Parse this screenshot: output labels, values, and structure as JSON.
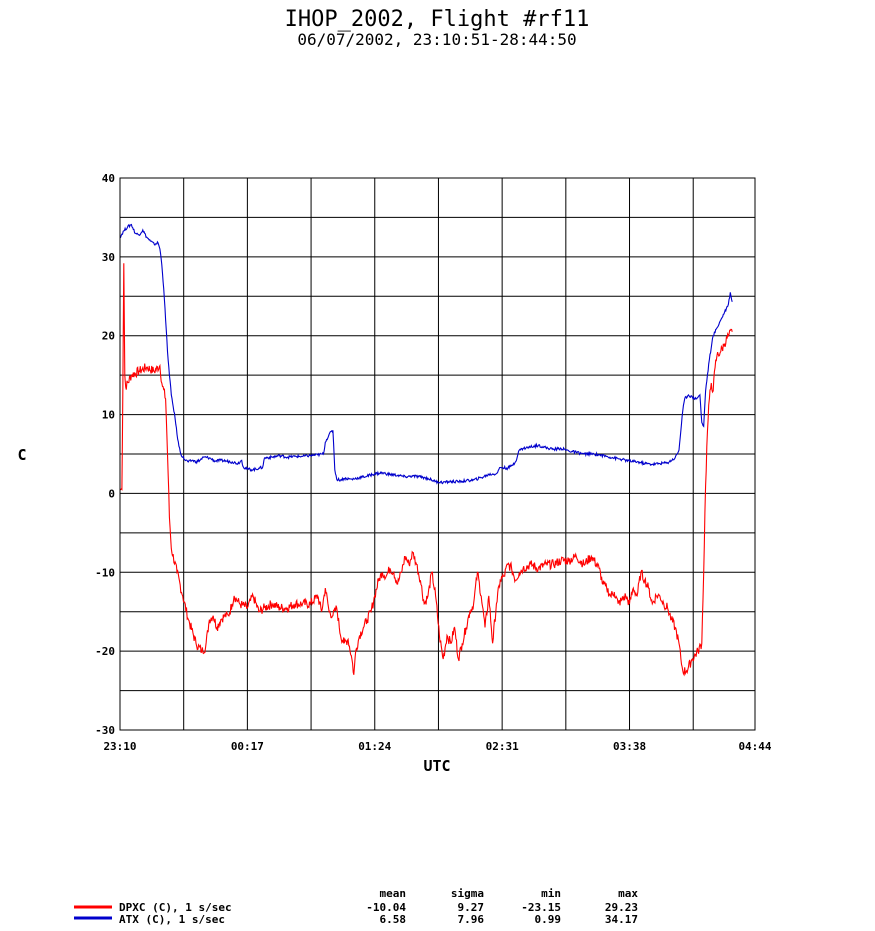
{
  "chart_data": {
    "type": "line",
    "title": "IHOP_2002, Flight #rf11",
    "subtitle": "06/07/2002, 23:10:51-28:44:50",
    "xlabel": "UTC",
    "ylabel": "C",
    "xlim_minutes": [
      0,
      334
    ],
    "ylim": [
      -30,
      40
    ],
    "x_ticks": [
      {
        "minute": 0,
        "label": "23:10"
      },
      {
        "minute": 67,
        "label": "00:17"
      },
      {
        "minute": 134,
        "label": "01:24"
      },
      {
        "minute": 201,
        "label": "02:31"
      },
      {
        "minute": 268,
        "label": "03:38"
      },
      {
        "minute": 334,
        "label": "04:44"
      }
    ],
    "y_ticks": [
      {
        "value": 40,
        "label": "40"
      },
      {
        "value": 30,
        "label": "30"
      },
      {
        "value": 20,
        "label": "20"
      },
      {
        "value": 10,
        "label": "10"
      },
      {
        "value": 0,
        "label": "0"
      },
      {
        "value": -10,
        "label": "-10"
      },
      {
        "value": -20,
        "label": "-20"
      },
      {
        "value": -30,
        "label": "-30"
      }
    ],
    "grid": true,
    "stats_headers": {
      "mean": "mean",
      "sigma": "sigma",
      "min": "min",
      "max": "max"
    },
    "series": [
      {
        "name": "DPXC (C), 1 s/sec",
        "color": "#ff0000",
        "mean": "-10.04",
        "sigma": "9.27",
        "min": "-23.15",
        "max": "29.23",
        "points": [
          [
            0,
            0.5
          ],
          [
            1,
            0.5
          ],
          [
            1.5,
            14
          ],
          [
            2,
            29.2
          ],
          [
            2.5,
            15
          ],
          [
            3,
            13.5
          ],
          [
            6,
            15
          ],
          [
            10,
            15.5
          ],
          [
            14,
            16
          ],
          [
            18,
            15.5
          ],
          [
            21,
            16.2
          ],
          [
            22,
            14
          ],
          [
            24,
            12
          ],
          [
            25,
            5
          ],
          [
            26,
            -3
          ],
          [
            27,
            -7
          ],
          [
            30,
            -10
          ],
          [
            33,
            -13
          ],
          [
            36,
            -16
          ],
          [
            40,
            -19
          ],
          [
            43,
            -20
          ],
          [
            45,
            -19.5
          ],
          [
            47,
            -16
          ],
          [
            49,
            -15.5
          ],
          [
            51,
            -17
          ],
          [
            53,
            -16
          ],
          [
            55,
            -15.5
          ],
          [
            57,
            -15.5
          ],
          [
            59,
            -14
          ],
          [
            60,
            -13
          ],
          [
            63,
            -14
          ],
          [
            67,
            -14.5
          ],
          [
            70,
            -13
          ],
          [
            73,
            -15
          ],
          [
            76,
            -14.5
          ],
          [
            80,
            -14
          ],
          [
            84,
            -14.5
          ],
          [
            88,
            -14.5
          ],
          [
            92,
            -14
          ],
          [
            96,
            -14
          ],
          [
            100,
            -14
          ],
          [
            104,
            -13
          ],
          [
            106,
            -15
          ],
          [
            108,
            -12
          ],
          [
            110,
            -15
          ],
          [
            112,
            -15.5
          ],
          [
            114,
            -14.5
          ],
          [
            116,
            -18
          ],
          [
            118,
            -19
          ],
          [
            120,
            -18.5
          ],
          [
            122,
            -21
          ],
          [
            123,
            -23
          ],
          [
            124,
            -20
          ],
          [
            126,
            -18
          ],
          [
            128,
            -17
          ],
          [
            130,
            -16
          ],
          [
            132,
            -15
          ],
          [
            134,
            -13
          ],
          [
            136,
            -11
          ],
          [
            138,
            -10
          ],
          [
            140,
            -10.5
          ],
          [
            142,
            -9.5
          ],
          [
            144,
            -10
          ],
          [
            146,
            -11.5
          ],
          [
            148,
            -10
          ],
          [
            150,
            -8
          ],
          [
            152,
            -9
          ],
          [
            154,
            -7.5
          ],
          [
            156,
            -9
          ],
          [
            158,
            -11
          ],
          [
            160,
            -14
          ],
          [
            162,
            -13
          ],
          [
            164,
            -10
          ],
          [
            166,
            -13
          ],
          [
            168,
            -18
          ],
          [
            170,
            -21
          ],
          [
            172,
            -18
          ],
          [
            174,
            -19
          ],
          [
            176,
            -17
          ],
          [
            178,
            -21
          ],
          [
            180,
            -19
          ],
          [
            182,
            -17
          ],
          [
            184,
            -15
          ],
          [
            186,
            -14
          ],
          [
            188,
            -10
          ],
          [
            190,
            -13
          ],
          [
            192,
            -17
          ],
          [
            194,
            -13
          ],
          [
            196,
            -19
          ],
          [
            198,
            -14
          ],
          [
            200,
            -11
          ],
          [
            202,
            -10.5
          ],
          [
            204,
            -9
          ],
          [
            206,
            -9.5
          ],
          [
            208,
            -11
          ],
          [
            210,
            -10
          ],
          [
            212,
            -9.5
          ],
          [
            216,
            -9
          ],
          [
            220,
            -9.5
          ],
          [
            224,
            -9
          ],
          [
            228,
            -9
          ],
          [
            232,
            -8.5
          ],
          [
            236,
            -8.5
          ],
          [
            240,
            -8
          ],
          [
            244,
            -9
          ],
          [
            248,
            -8
          ],
          [
            252,
            -9.5
          ],
          [
            254,
            -11.5
          ],
          [
            256,
            -12
          ],
          [
            258,
            -13
          ],
          [
            260,
            -12.5
          ],
          [
            262,
            -14
          ],
          [
            264,
            -13.5
          ],
          [
            266,
            -13
          ],
          [
            268,
            -14
          ],
          [
            270,
            -12
          ],
          [
            272,
            -13
          ],
          [
            274,
            -10
          ],
          [
            276,
            -11
          ],
          [
            278,
            -12
          ],
          [
            280,
            -14
          ],
          [
            282,
            -13
          ],
          [
            284,
            -13
          ],
          [
            286,
            -14
          ],
          [
            288,
            -14.5
          ],
          [
            290,
            -16
          ],
          [
            292,
            -17
          ],
          [
            294,
            -19
          ],
          [
            295,
            -21
          ],
          [
            296,
            -22.5
          ],
          [
            298,
            -22.5
          ],
          [
            301,
            -21
          ],
          [
            304,
            -20
          ],
          [
            306,
            -19
          ],
          [
            307,
            -10
          ],
          [
            308,
            1
          ],
          [
            309,
            8
          ],
          [
            310,
            12
          ],
          [
            311,
            14
          ],
          [
            312,
            13
          ],
          [
            313,
            16
          ],
          [
            314,
            17.5
          ],
          [
            316,
            18
          ],
          [
            318,
            19
          ],
          [
            320,
            20
          ],
          [
            322,
            20.5
          ]
        ]
      },
      {
        "name": "ATX (C), 1 s/sec",
        "color": "#0000cc",
        "mean": "6.58",
        "sigma": "7.96",
        "min": "0.99",
        "max": "34.17",
        "points": [
          [
            0,
            32.5
          ],
          [
            2,
            33.3
          ],
          [
            4,
            33.8
          ],
          [
            6,
            34.1
          ],
          [
            8,
            33
          ],
          [
            10,
            32.8
          ],
          [
            12,
            33.4
          ],
          [
            14,
            32.5
          ],
          [
            16,
            32
          ],
          [
            18,
            31.6
          ],
          [
            20,
            31.8
          ],
          [
            21,
            31
          ],
          [
            22,
            29
          ],
          [
            23,
            26
          ],
          [
            24,
            22
          ],
          [
            25,
            18
          ],
          [
            26,
            15
          ],
          [
            27,
            12.5
          ],
          [
            28,
            11
          ],
          [
            29,
            9.5
          ],
          [
            30,
            7.5
          ],
          [
            31,
            6
          ],
          [
            32,
            5
          ],
          [
            34,
            4.3
          ],
          [
            36,
            4
          ],
          [
            38,
            4.2
          ],
          [
            40,
            4
          ],
          [
            42,
            4.2
          ],
          [
            44,
            4.6
          ],
          [
            47,
            4.5
          ],
          [
            50,
            4.1
          ],
          [
            53,
            4.2
          ],
          [
            56,
            4.1
          ],
          [
            59,
            4
          ],
          [
            62,
            3.8
          ],
          [
            64,
            4.2
          ],
          [
            65,
            3.3
          ],
          [
            67,
            3.1
          ],
          [
            70,
            3
          ],
          [
            73,
            3.2
          ],
          [
            75,
            3.3
          ],
          [
            76,
            4.5
          ],
          [
            80,
            4.6
          ],
          [
            84,
            4.8
          ],
          [
            88,
            4.6
          ],
          [
            92,
            4.7
          ],
          [
            96,
            4.7
          ],
          [
            100,
            4.8
          ],
          [
            104,
            4.9
          ],
          [
            107,
            5
          ],
          [
            108,
            6.5
          ],
          [
            110,
            7.5
          ],
          [
            112,
            8
          ],
          [
            113,
            3
          ],
          [
            114,
            1.8
          ],
          [
            116,
            1.7
          ],
          [
            118,
            1.9
          ],
          [
            122,
            1.8
          ],
          [
            126,
            2
          ],
          [
            130,
            2.2
          ],
          [
            134,
            2.5
          ],
          [
            138,
            2.6
          ],
          [
            142,
            2.4
          ],
          [
            146,
            2.3
          ],
          [
            150,
            2.1
          ],
          [
            154,
            2.2
          ],
          [
            158,
            2.1
          ],
          [
            162,
            1.9
          ],
          [
            166,
            1.5
          ],
          [
            170,
            1.4
          ],
          [
            174,
            1.5
          ],
          [
            178,
            1.5
          ],
          [
            182,
            1.6
          ],
          [
            186,
            1.7
          ],
          [
            190,
            2
          ],
          [
            194,
            2.4
          ],
          [
            198,
            2.5
          ],
          [
            200,
            3.3
          ],
          [
            204,
            3.2
          ],
          [
            206,
            3.5
          ],
          [
            208,
            4
          ],
          [
            210,
            5.5
          ],
          [
            212,
            5.7
          ],
          [
            216,
            5.9
          ],
          [
            220,
            6.1
          ],
          [
            224,
            5.8
          ],
          [
            228,
            5.6
          ],
          [
            232,
            5.7
          ],
          [
            236,
            5.4
          ],
          [
            240,
            5.2
          ],
          [
            244,
            5
          ],
          [
            248,
            5
          ],
          [
            252,
            4.9
          ],
          [
            256,
            4.7
          ],
          [
            260,
            4.5
          ],
          [
            264,
            4.3
          ],
          [
            268,
            4.1
          ],
          [
            272,
            4
          ],
          [
            276,
            3.8
          ],
          [
            280,
            3.7
          ],
          [
            284,
            3.8
          ],
          [
            288,
            3.9
          ],
          [
            292,
            4.5
          ],
          [
            294,
            5.5
          ],
          [
            295,
            8
          ],
          [
            296,
            10.5
          ],
          [
            297,
            12
          ],
          [
            299,
            12.5
          ],
          [
            301,
            12.2
          ],
          [
            303,
            12
          ],
          [
            305,
            12.5
          ],
          [
            306,
            9
          ],
          [
            307,
            8.5
          ],
          [
            308,
            13
          ],
          [
            310,
            17
          ],
          [
            312,
            20
          ],
          [
            314,
            21
          ],
          [
            316,
            22
          ],
          [
            318,
            23
          ],
          [
            320,
            24
          ],
          [
            321,
            25.5
          ],
          [
            322,
            24.3
          ]
        ]
      }
    ]
  }
}
